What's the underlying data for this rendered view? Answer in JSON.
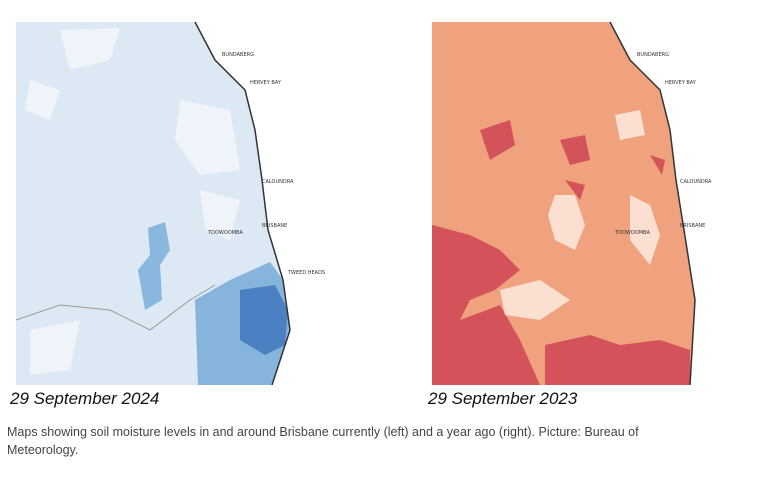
{
  "maps": [
    {
      "date": "29 September 2024",
      "labels": [
        "BUNDABERG",
        "HERVEY BAY",
        "CALOUNDRA",
        "BRISBANE",
        "TOOWOOMBA",
        "TWEED HEADS"
      ]
    },
    {
      "date": "29 September 2023",
      "labels": [
        "BUNDABERG",
        "HERVEY BAY",
        "CALOUNDRA",
        "BRISBANE",
        "TOOWOOMBA"
      ]
    }
  ],
  "caption": "Maps showing soil moisture levels in and around Brisbane currently (left) and a year ago (right). Picture: Bureau of Meteorology."
}
